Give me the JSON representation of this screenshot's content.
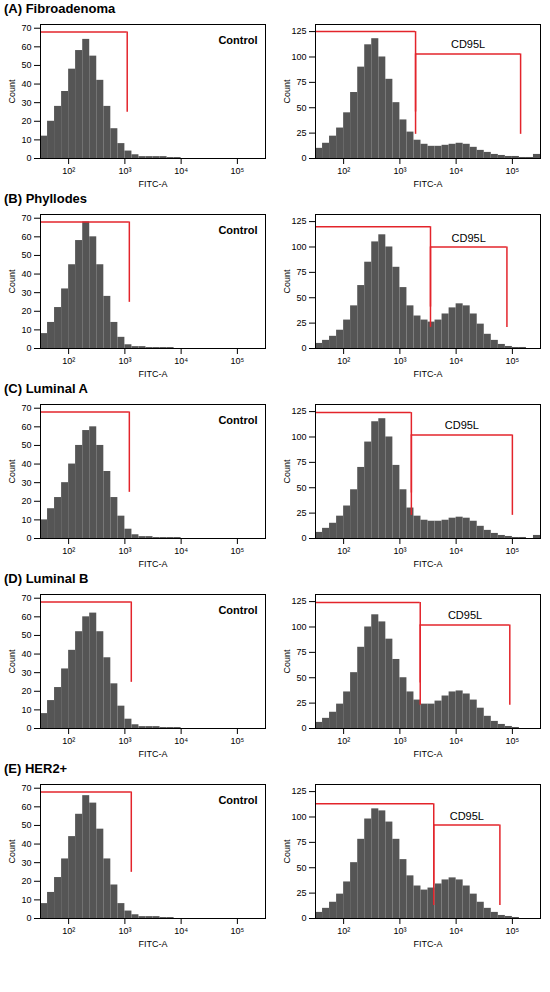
{
  "chart_data": [
    {
      "type": "histogram",
      "title": "(A) Fibroadenoma",
      "annotations": [
        "Control"
      ],
      "x_label": "FITC-A",
      "y_label": "Count",
      "log": "x",
      "color": "#555555",
      "bins": [
        31.6,
        42.2,
        56.2,
        75,
        100,
        133,
        178,
        237,
        316,
        422,
        562,
        750,
        1000,
        1334,
        1778,
        2371,
        3162,
        4217,
        5623,
        7499,
        10000,
        13335,
        17783,
        23714,
        31623,
        42170,
        56234,
        74989,
        100000,
        133352,
        177828,
        237137,
        316228
      ],
      "counts": [
        12,
        20,
        28,
        36,
        48,
        58,
        64,
        55,
        42,
        28,
        16,
        8,
        4,
        2,
        1,
        1,
        1,
        1,
        0.5,
        0.5,
        0,
        0,
        0,
        0,
        0,
        0,
        0,
        0,
        0,
        0,
        0,
        0
      ],
      "gates": [
        {
          "from": 31.6,
          "to": 1100,
          "y": 68
        }
      ],
      "xlim": [
        31.6,
        316228
      ],
      "xticks": [
        {
          "value": 100,
          "label": "10²"
        },
        {
          "value": 1000,
          "label": "10³"
        },
        {
          "value": 10000,
          "label": "10⁴"
        },
        {
          "value": 100000,
          "label": "10⁵"
        }
      ],
      "ylim": [
        0,
        72
      ],
      "yticks": [
        0,
        10,
        20,
        30,
        40,
        50,
        60,
        70
      ]
    },
    {
      "type": "histogram",
      "x_label": "FITC-A",
      "y_label": "Count",
      "log": "x",
      "color": "#555555",
      "bins": [
        31.6,
        42.2,
        56.2,
        75,
        100,
        133,
        178,
        237,
        316,
        422,
        562,
        750,
        1000,
        1334,
        1778,
        2371,
        3162,
        4217,
        5623,
        7499,
        10000,
        13335,
        17783,
        23714,
        31623,
        42170,
        56234,
        74989,
        100000,
        133352,
        177828,
        237137,
        316228
      ],
      "counts": [
        10,
        15,
        22,
        30,
        45,
        65,
        90,
        112,
        118,
        100,
        78,
        55,
        38,
        26,
        18,
        14,
        12,
        12,
        13,
        14,
        15,
        14,
        11,
        8,
        6,
        4,
        3,
        2,
        2,
        1,
        1,
        4
      ],
      "gates": [
        {
          "from": 31.6,
          "to": 1900,
          "y": 125
        },
        {
          "from": 1900,
          "to": 140000,
          "y": 103,
          "label": "CD95L"
        }
      ],
      "xlim": [
        31.6,
        316228
      ],
      "xticks": [
        {
          "value": 100,
          "label": "10²"
        },
        {
          "value": 1000,
          "label": "10³"
        },
        {
          "value": 10000,
          "label": "10⁴"
        },
        {
          "value": 100000,
          "label": "10⁵"
        }
      ],
      "ylim": [
        0,
        132
      ],
      "yticks": [
        0,
        25,
        50,
        75,
        100,
        125
      ]
    },
    {
      "type": "histogram",
      "title": "(B) Phyllodes",
      "annotations": [
        "Control"
      ],
      "x_label": "FITC-A",
      "y_label": "Count",
      "log": "x",
      "color": "#555555",
      "bins": [
        31.6,
        42.2,
        56.2,
        75,
        100,
        133,
        178,
        237,
        316,
        422,
        562,
        750,
        1000,
        1334,
        1778,
        2371,
        3162,
        4217,
        5623,
        7499,
        10000,
        13335,
        17783,
        23714,
        31623,
        42170,
        56234,
        74989,
        100000,
        133352,
        177828,
        237137,
        316228
      ],
      "counts": [
        8,
        14,
        22,
        32,
        45,
        58,
        68,
        60,
        45,
        28,
        14,
        6,
        2,
        1,
        1,
        0.5,
        0.5,
        0.5,
        0.5,
        0,
        0,
        0,
        0,
        0,
        0,
        0,
        0,
        0,
        0,
        0,
        0,
        0
      ],
      "gates": [
        {
          "from": 31.6,
          "to": 1200,
          "y": 68
        }
      ],
      "xlim": [
        31.6,
        316228
      ],
      "xticks": [
        {
          "value": 100,
          "label": "10²"
        },
        {
          "value": 1000,
          "label": "10³"
        },
        {
          "value": 10000,
          "label": "10⁴"
        },
        {
          "value": 100000,
          "label": "10⁵"
        }
      ],
      "ylim": [
        0,
        72
      ],
      "yticks": [
        0,
        10,
        20,
        30,
        40,
        50,
        60,
        70
      ]
    },
    {
      "type": "histogram",
      "x_label": "FITC-A",
      "y_label": "Count",
      "log": "x",
      "color": "#555555",
      "bins": [
        31.6,
        42.2,
        56.2,
        75,
        100,
        133,
        178,
        237,
        316,
        422,
        562,
        750,
        1000,
        1334,
        1778,
        2371,
        3162,
        4217,
        5623,
        7499,
        10000,
        13335,
        17783,
        23714,
        31623,
        42170,
        56234,
        74989,
        100000,
        133352,
        177828,
        237137,
        316228
      ],
      "counts": [
        5,
        8,
        12,
        18,
        28,
        42,
        62,
        85,
        105,
        112,
        100,
        80,
        60,
        42,
        32,
        28,
        26,
        28,
        34,
        40,
        44,
        42,
        34,
        24,
        14,
        8,
        4,
        2,
        1,
        1,
        0,
        0
      ],
      "gates": [
        {
          "from": 31.6,
          "to": 3500,
          "y": 120
        },
        {
          "from": 3500,
          "to": 80000,
          "y": 100,
          "label": "CD95L"
        }
      ],
      "xlim": [
        31.6,
        316228
      ],
      "xticks": [
        {
          "value": 100,
          "label": "10²"
        },
        {
          "value": 1000,
          "label": "10³"
        },
        {
          "value": 10000,
          "label": "10⁴"
        },
        {
          "value": 100000,
          "label": "10⁵"
        }
      ],
      "ylim": [
        0,
        132
      ],
      "yticks": [
        0,
        25,
        50,
        75,
        100,
        125
      ]
    },
    {
      "type": "histogram",
      "title": "(C)  Luminal A",
      "annotations": [
        "Control"
      ],
      "x_label": "FITC-A",
      "y_label": "Count",
      "log": "x",
      "color": "#555555",
      "bins": [
        31.6,
        42.2,
        56.2,
        75,
        100,
        133,
        178,
        237,
        316,
        422,
        562,
        750,
        1000,
        1334,
        1778,
        2371,
        3162,
        4217,
        5623,
        7499,
        10000,
        13335,
        17783,
        23714,
        31623,
        42170,
        56234,
        74989,
        100000,
        133352,
        177828,
        237137,
        316228
      ],
      "counts": [
        10,
        16,
        22,
        30,
        40,
        50,
        58,
        60,
        50,
        36,
        22,
        12,
        5,
        2,
        1,
        1,
        0.5,
        0.5,
        0.5,
        0.5,
        0,
        0,
        0,
        0,
        0,
        0,
        0,
        0,
        0,
        0,
        0,
        0
      ],
      "gates": [
        {
          "from": 31.6,
          "to": 1200,
          "y": 68
        }
      ],
      "xlim": [
        31.6,
        316228
      ],
      "xticks": [
        {
          "value": 100,
          "label": "10²"
        },
        {
          "value": 1000,
          "label": "10³"
        },
        {
          "value": 10000,
          "label": "10⁴"
        },
        {
          "value": 100000,
          "label": "10⁵"
        }
      ],
      "ylim": [
        0,
        72
      ],
      "yticks": [
        0,
        10,
        20,
        30,
        40,
        50,
        60,
        70
      ]
    },
    {
      "type": "histogram",
      "x_label": "FITC-A",
      "y_label": "Count",
      "log": "x",
      "color": "#555555",
      "bins": [
        31.6,
        42.2,
        56.2,
        75,
        100,
        133,
        178,
        237,
        316,
        422,
        562,
        750,
        1000,
        1334,
        1778,
        2371,
        3162,
        4217,
        5623,
        7499,
        10000,
        13335,
        17783,
        23714,
        31623,
        42170,
        56234,
        74989,
        100000,
        133352,
        177828,
        237137,
        316228
      ],
      "counts": [
        6,
        10,
        15,
        22,
        32,
        48,
        70,
        95,
        115,
        118,
        100,
        72,
        48,
        30,
        22,
        18,
        17,
        17,
        18,
        20,
        21,
        20,
        17,
        12,
        8,
        5,
        3,
        2,
        1,
        1,
        0,
        3
      ],
      "gates": [
        {
          "from": 31.6,
          "to": 1600,
          "y": 124
        },
        {
          "from": 1600,
          "to": 100000,
          "y": 102,
          "label": "CD95L"
        }
      ],
      "xlim": [
        31.6,
        316228
      ],
      "xticks": [
        {
          "value": 100,
          "label": "10²"
        },
        {
          "value": 1000,
          "label": "10³"
        },
        {
          "value": 10000,
          "label": "10⁴"
        },
        {
          "value": 100000,
          "label": "10⁵"
        }
      ],
      "ylim": [
        0,
        132
      ],
      "yticks": [
        0,
        25,
        50,
        75,
        100,
        125
      ]
    },
    {
      "type": "histogram",
      "title": "(D) Luminal B",
      "annotations": [
        "Control"
      ],
      "x_label": "FITC-A",
      "y_label": "Count",
      "log": "x",
      "color": "#555555",
      "bins": [
        31.6,
        42.2,
        56.2,
        75,
        100,
        133,
        178,
        237,
        316,
        422,
        562,
        750,
        1000,
        1334,
        1778,
        2371,
        3162,
        4217,
        5623,
        7499,
        10000,
        13335,
        17783,
        23714,
        31623,
        42170,
        56234,
        74989,
        100000,
        133352,
        177828,
        237137,
        316228
      ],
      "counts": [
        8,
        15,
        22,
        32,
        42,
        52,
        60,
        62,
        52,
        38,
        24,
        12,
        5,
        2,
        1,
        1,
        1,
        0.5,
        0.5,
        0.5,
        0,
        0,
        0,
        0,
        0,
        0,
        0,
        0,
        0,
        0,
        0,
        0
      ],
      "gates": [
        {
          "from": 31.6,
          "to": 1300,
          "y": 68
        }
      ],
      "xlim": [
        31.6,
        316228
      ],
      "xticks": [
        {
          "value": 100,
          "label": "10²"
        },
        {
          "value": 1000,
          "label": "10³"
        },
        {
          "value": 10000,
          "label": "10⁴"
        },
        {
          "value": 100000,
          "label": "10⁵"
        }
      ],
      "ylim": [
        0,
        72
      ],
      "yticks": [
        0,
        10,
        20,
        30,
        40,
        50,
        60,
        70
      ]
    },
    {
      "type": "histogram",
      "x_label": "FITC-A",
      "y_label": "Count",
      "log": "x",
      "color": "#555555",
      "bins": [
        31.6,
        42.2,
        56.2,
        75,
        100,
        133,
        178,
        237,
        316,
        422,
        562,
        750,
        1000,
        1334,
        1778,
        2371,
        3162,
        4217,
        5623,
        7499,
        10000,
        13335,
        17783,
        23714,
        31623,
        42170,
        56234,
        74989,
        100000,
        133352,
        177828,
        237137,
        316228
      ],
      "counts": [
        6,
        10,
        16,
        24,
        36,
        55,
        80,
        100,
        112,
        105,
        88,
        68,
        50,
        36,
        28,
        24,
        24,
        27,
        32,
        36,
        37,
        34,
        28,
        20,
        12,
        7,
        4,
        2,
        1,
        0,
        0,
        0
      ],
      "gates": [
        {
          "from": 31.6,
          "to": 2300,
          "y": 124
        },
        {
          "from": 2300,
          "to": 90000,
          "y": 102,
          "label": "CD95L"
        }
      ],
      "xlim": [
        31.6,
        316228
      ],
      "xticks": [
        {
          "value": 100,
          "label": "10²"
        },
        {
          "value": 1000,
          "label": "10³"
        },
        {
          "value": 10000,
          "label": "10⁴"
        },
        {
          "value": 100000,
          "label": "10⁵"
        }
      ],
      "ylim": [
        0,
        132
      ],
      "yticks": [
        0,
        25,
        50,
        75,
        100,
        125
      ]
    },
    {
      "type": "histogram",
      "title": "(E) HER2+",
      "annotations": [
        "Control"
      ],
      "x_label": "FITC-A",
      "y_label": "Count",
      "log": "x",
      "color": "#555555",
      "bins": [
        31.6,
        42.2,
        56.2,
        75,
        100,
        133,
        178,
        237,
        316,
        422,
        562,
        750,
        1000,
        1334,
        1778,
        2371,
        3162,
        4217,
        5623,
        7499,
        10000,
        13335,
        17783,
        23714,
        31623,
        42170,
        56234,
        74989,
        100000,
        133352,
        177828,
        237137,
        316228
      ],
      "counts": [
        8,
        14,
        22,
        32,
        44,
        56,
        66,
        62,
        48,
        32,
        18,
        8,
        4,
        2,
        1,
        1,
        1,
        0.5,
        0.5,
        0,
        0,
        0,
        0,
        0,
        0,
        0,
        0,
        0,
        0,
        0,
        0,
        0
      ],
      "gates": [
        {
          "from": 31.6,
          "to": 1300,
          "y": 68
        }
      ],
      "xlim": [
        31.6,
        316228
      ],
      "xticks": [
        {
          "value": 100,
          "label": "10²"
        },
        {
          "value": 1000,
          "label": "10³"
        },
        {
          "value": 10000,
          "label": "10⁴"
        },
        {
          "value": 100000,
          "label": "10⁵"
        }
      ],
      "ylim": [
        0,
        72
      ],
      "yticks": [
        0,
        10,
        20,
        30,
        40,
        50,
        60,
        70
      ]
    },
    {
      "type": "histogram",
      "x_label": "FITC-A",
      "y_label": "Count",
      "log": "x",
      "color": "#555555",
      "bins": [
        31.6,
        42.2,
        56.2,
        75,
        100,
        133,
        178,
        237,
        316,
        422,
        562,
        750,
        1000,
        1334,
        1778,
        2371,
        3162,
        4217,
        5623,
        7499,
        10000,
        13335,
        17783,
        23714,
        31623,
        42170,
        56234,
        74989,
        100000,
        133352,
        177828,
        237137,
        316228
      ],
      "counts": [
        6,
        10,
        16,
        24,
        36,
        55,
        78,
        98,
        108,
        106,
        95,
        78,
        58,
        42,
        32,
        28,
        30,
        34,
        38,
        40,
        38,
        32,
        24,
        16,
        10,
        6,
        3,
        2,
        1,
        0,
        0,
        0
      ],
      "gates": [
        {
          "from": 31.6,
          "to": 4000,
          "y": 113
        },
        {
          "from": 4000,
          "to": 60000,
          "y": 92,
          "label": "CD95L"
        }
      ],
      "xlim": [
        31.6,
        316228
      ],
      "xticks": [
        {
          "value": 100,
          "label": "10²"
        },
        {
          "value": 1000,
          "label": "10³"
        },
        {
          "value": 10000,
          "label": "10⁴"
        },
        {
          "value": 100000,
          "label": "10⁵"
        }
      ],
      "ylim": [
        0,
        132
      ],
      "yticks": [
        0,
        25,
        50,
        75,
        100,
        125
      ]
    }
  ]
}
